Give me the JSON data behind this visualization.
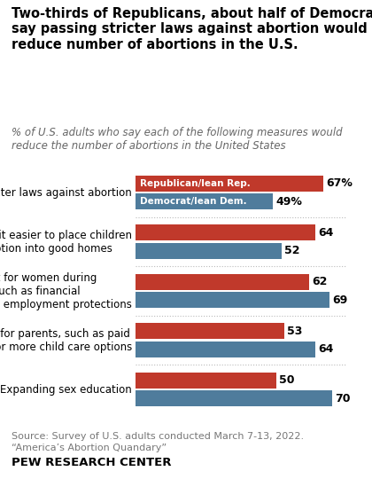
{
  "title": "Two-thirds of Republicans, about half of Democrats\nsay passing stricter laws against abortion would\nreduce number of abortions in the U.S.",
  "subtitle": "% of U.S. adults who say each of the following measures would\nreduce the number of abortions in the United States",
  "categories": [
    "Passing stricter laws against abortion",
    "Making it easier to place children\nfor adoption into good homes",
    "More support for women during\npregnancy, such as financial\nassistance or employment protections",
    "More support for parents, such as paid\nfamily leave or more child care options",
    "Expanding sex education"
  ],
  "rep_values": [
    67,
    64,
    62,
    53,
    50
  ],
  "dem_values": [
    49,
    52,
    69,
    64,
    70
  ],
  "rep_color": "#C0392B",
  "dem_color": "#4F7C9C",
  "rep_label": "Republican/lean Rep.",
  "dem_label": "Democrat/lean Dem.",
  "source_line1": "Source: Survey of U.S. adults conducted March 7-13, 2022.",
  "source_line2": "“America’s Abortion Quandary”",
  "footer": "PEW RESEARCH CENTER",
  "background_color": "#FFFFFF",
  "bar_height": 0.32,
  "xlim": [
    0,
    75
  ],
  "title_fontsize": 10.5,
  "subtitle_fontsize": 8.5,
  "label_fontsize": 8.5,
  "value_fontsize": 9,
  "source_fontsize": 8
}
